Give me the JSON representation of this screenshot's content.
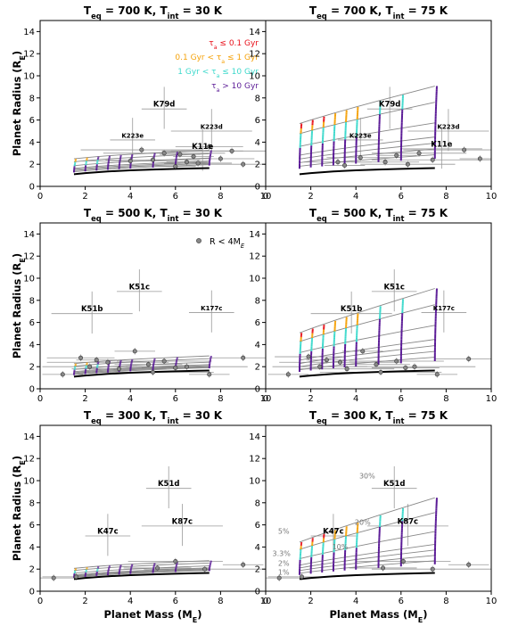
{
  "chart_data": {
    "type": "line",
    "x_axis_label": "Planet Mass (M",
    "x_axis_label_sub": "E",
    "x_axis_label_end": ")",
    "y_axis_label": "Planet Radius (R",
    "y_axis_label_sub": "E",
    "y_axis_label_end": ")",
    "xlim": [
      0,
      10
    ],
    "ylim": [
      0,
      15
    ],
    "xticks": [
      "0",
      "2",
      "4",
      "6",
      "8",
      "10"
    ],
    "yticks": [
      "0",
      "2",
      "4",
      "6",
      "8",
      "10",
      "12",
      "14"
    ],
    "legend": [
      {
        "label": "τa ≤ 0.1 Gyr",
        "parts": [
          "τ",
          "a",
          " ≤ 0.1 Gyr"
        ],
        "color": "#e8101a"
      },
      {
        "label": "0.1 Gyr < τa ≤ 1 Gyr",
        "parts": [
          "0.1 Gyr < τ",
          "a",
          " ≤ 1 Gyr"
        ],
        "color": "#f5a20a"
      },
      {
        "label": "1 Gyr < τa ≤ 10 Gyr",
        "parts": [
          "1 Gyr < τ",
          "a",
          " ≤ 10 Gyr"
        ],
        "color": "#3dd9cc"
      },
      {
        "label": "τa > 10 Gyr",
        "parts": [
          "τ",
          "a",
          " > 10 Gyr"
        ],
        "color": "#5a1a96"
      }
    ],
    "observed_legend": {
      "label": "R < 4M",
      "sub": "E"
    },
    "mass_radius_line": {
      "x": [
        1.5,
        2,
        3,
        4,
        5,
        6,
        7,
        7.5
      ],
      "y": [
        1.1,
        1.2,
        1.35,
        1.45,
        1.52,
        1.58,
        1.63,
        1.65
      ]
    },
    "panels": [
      {
        "title": "T",
        "title_sub": "eq",
        "title_rest": " = 700 K, T",
        "title_sub2": "int",
        "title_end": " = 30 K",
        "profile": "low_hot",
        "labels": [
          {
            "text": "K79d",
            "x": 5.5,
            "y": 7.2
          },
          {
            "text": "K223d",
            "x": 7.6,
            "y": 5.2
          },
          {
            "text": "K223e",
            "x": 4.1,
            "y": 4.4
          },
          {
            "text": "K11e",
            "x": 7.2,
            "y": 3.4
          }
        ],
        "observed": [
          [
            6.0,
            1.8
          ],
          [
            7.0,
            2.1
          ],
          [
            5.0,
            2.4
          ],
          [
            8.5,
            3.2
          ],
          [
            6.5,
            2.2
          ],
          [
            7.5,
            3.6
          ],
          [
            4.0,
            2.3
          ],
          [
            5.5,
            3.0
          ],
          [
            6.8,
            2.7
          ],
          [
            8.0,
            2.5
          ],
          [
            9.0,
            2.0
          ],
          [
            4.5,
            3.3
          ],
          [
            6.2,
            2.9
          ]
        ]
      },
      {
        "title": "T",
        "title_sub": "eq",
        "title_rest": " = 700 K, T",
        "title_sub2": "int",
        "title_end": " = 75 K",
        "profile": "high_hot",
        "labels": [
          {
            "text": "K79d",
            "x": 5.5,
            "y": 7.2
          },
          {
            "text": "K223d",
            "x": 8.1,
            "y": 5.2
          },
          {
            "text": "K223e",
            "x": 4.2,
            "y": 4.4
          },
          {
            "text": "K11e",
            "x": 7.8,
            "y": 3.6
          }
        ],
        "observed": [
          [
            3.5,
            1.9
          ],
          [
            5.3,
            2.2
          ],
          [
            6.3,
            2.0
          ],
          [
            7.4,
            2.4
          ],
          [
            9.5,
            2.5
          ],
          [
            4.2,
            2.6
          ],
          [
            6.8,
            3.0
          ],
          [
            8.8,
            3.3
          ],
          [
            5.8,
            2.8
          ],
          [
            3.2,
            2.2
          ]
        ]
      },
      {
        "title": "T",
        "title_sub": "eq",
        "title_rest": " = 500 K, T",
        "title_sub2": "int",
        "title_end": " = 30 K",
        "profile": "low_warm",
        "labels": [
          {
            "text": "K51c",
            "x": 4.4,
            "y": 9.0
          },
          {
            "text": "K51b",
            "x": 2.3,
            "y": 7.0
          },
          {
            "text": "K177c",
            "x": 7.6,
            "y": 7.1
          }
        ],
        "observed": [
          [
            1.0,
            1.3
          ],
          [
            1.8,
            2.8
          ],
          [
            2.2,
            2.0
          ],
          [
            3.0,
            2.4
          ],
          [
            4.2,
            3.4
          ],
          [
            4.8,
            2.2
          ],
          [
            5.5,
            2.5
          ],
          [
            6.5,
            2.0
          ],
          [
            7.5,
            1.3
          ],
          [
            9.0,
            2.8
          ],
          [
            3.5,
            1.8
          ],
          [
            5.0,
            1.5
          ],
          [
            2.5,
            2.6
          ],
          [
            6.0,
            1.9
          ]
        ]
      },
      {
        "title": "T",
        "title_sub": "eq",
        "title_rest": " = 500 K, T",
        "title_sub2": "int",
        "title_end": " = 75 K",
        "profile": "high_warm",
        "labels": [
          {
            "text": "K51c",
            "x": 5.7,
            "y": 9.0
          },
          {
            "text": "K51b",
            "x": 3.8,
            "y": 7.0
          },
          {
            "text": "K177c",
            "x": 7.9,
            "y": 7.1
          }
        ],
        "observed": [
          [
            1.0,
            1.3
          ],
          [
            1.9,
            2.9
          ],
          [
            2.4,
            2.0
          ],
          [
            3.3,
            2.4
          ],
          [
            4.3,
            3.4
          ],
          [
            4.9,
            2.2
          ],
          [
            5.8,
            2.5
          ],
          [
            6.6,
            2.0
          ],
          [
            7.6,
            1.3
          ],
          [
            9.0,
            2.7
          ],
          [
            3.6,
            1.8
          ],
          [
            5.1,
            1.5
          ],
          [
            2.7,
            2.6
          ],
          [
            6.2,
            1.9
          ]
        ]
      },
      {
        "title": "T",
        "title_sub": "eq",
        "title_rest": " = 300 K, T",
        "title_sub2": "int",
        "title_end": " = 30 K",
        "profile": "low_cool",
        "labels": [
          {
            "text": "K51d",
            "x": 5.7,
            "y": 9.5
          },
          {
            "text": "K87c",
            "x": 6.3,
            "y": 6.1
          },
          {
            "text": "K47c",
            "x": 3.0,
            "y": 5.2
          }
        ],
        "observed": [
          [
            0.6,
            1.2
          ],
          [
            1.6,
            1.3
          ],
          [
            6.0,
            2.7
          ],
          [
            7.3,
            2.0
          ],
          [
            9.0,
            2.4
          ],
          [
            5.2,
            2.1
          ]
        ]
      },
      {
        "title": "T",
        "title_sub": "eq",
        "title_rest": " = 300 K, T",
        "title_sub2": "int",
        "title_end": " = 75 K",
        "profile": "high_cool",
        "labels": [
          {
            "text": "K51d",
            "x": 5.7,
            "y": 9.5
          },
          {
            "text": "K87c",
            "x": 6.3,
            "y": 6.1
          },
          {
            "text": "K47c",
            "x": 3.0,
            "y": 5.2
          }
        ],
        "observed": [
          [
            0.6,
            1.2
          ],
          [
            1.6,
            1.3
          ],
          [
            6.1,
            2.7
          ],
          [
            7.4,
            2.0
          ],
          [
            9.0,
            2.4
          ],
          [
            5.2,
            2.1
          ]
        ],
        "pct_labels": [
          {
            "text": "30%",
            "x": 4.5,
            "y": 10.2
          },
          {
            "text": "20%",
            "x": 4.3,
            "y": 6.0
          },
          {
            "text": "10%",
            "x": 3.3,
            "y": 3.8
          },
          {
            "text": "5%",
            "x": 0.8,
            "y": 5.2
          },
          {
            "text": "3.3%",
            "x": 0.7,
            "y": 3.2
          },
          {
            "text": "2%",
            "x": 0.8,
            "y": 2.3
          },
          {
            "text": "1%",
            "x": 0.8,
            "y": 1.5
          }
        ]
      }
    ]
  }
}
